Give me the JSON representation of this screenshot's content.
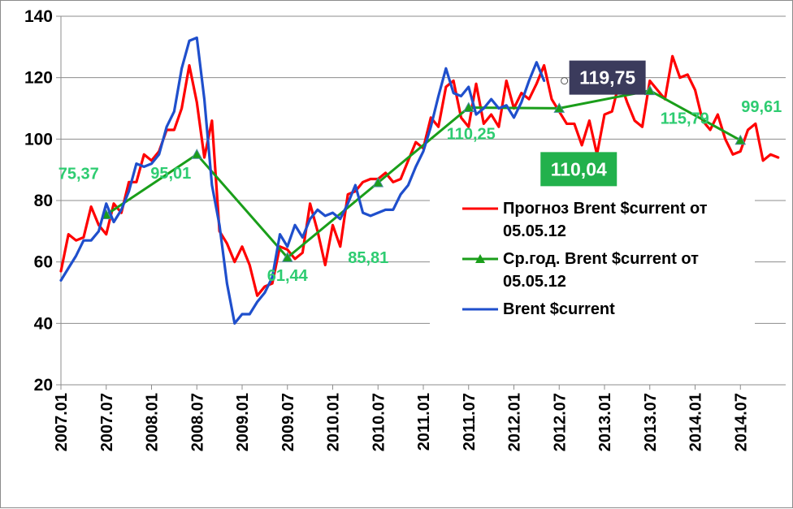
{
  "chart_data": {
    "type": "line",
    "title": "",
    "xlabel": "",
    "ylabel": "",
    "ylim": [
      20,
      140
    ],
    "yticks": [
      20,
      40,
      60,
      80,
      100,
      120,
      140
    ],
    "x_tick_labels": [
      "2007.01",
      "2007.07",
      "2008.01",
      "2008.07",
      "2009.01",
      "2009.07",
      "2010.01",
      "2010.07",
      "2011.01",
      "2011.07",
      "2012.01",
      "2012.07",
      "2013.01",
      "2013.07",
      "2014.01",
      "2014.07"
    ],
    "x_range": [
      2007.0,
      2015.0
    ],
    "grid": "horizontal",
    "legend_position": "center-right",
    "colors": {
      "forecast": "#ff0000",
      "average": "#1a9e1a",
      "actual": "#1f4fcc",
      "labels": "#2ecc71",
      "callout_dark": "#3b3b5c",
      "callout_green": "#22b14c"
    },
    "series": [
      {
        "key": "forecast",
        "name": "Прогноз Brent $current  от 05.05.12",
        "legend_lines": [
          "Прогноз Brent $current  от",
          "05.05.12"
        ],
        "x": [
          2007.0,
          2007.083,
          2007.167,
          2007.25,
          2007.333,
          2007.417,
          2007.5,
          2007.583,
          2007.667,
          2007.75,
          2007.833,
          2007.917,
          2008.0,
          2008.083,
          2008.167,
          2008.25,
          2008.333,
          2008.417,
          2008.5,
          2008.583,
          2008.667,
          2008.75,
          2008.833,
          2008.917,
          2009.0,
          2009.083,
          2009.167,
          2009.25,
          2009.333,
          2009.417,
          2009.5,
          2009.583,
          2009.667,
          2009.75,
          2009.833,
          2009.917,
          2010.0,
          2010.083,
          2010.167,
          2010.25,
          2010.333,
          2010.417,
          2010.5,
          2010.583,
          2010.667,
          2010.75,
          2010.833,
          2010.917,
          2011.0,
          2011.083,
          2011.167,
          2011.25,
          2011.333,
          2011.417,
          2011.5,
          2011.583,
          2011.667,
          2011.75,
          2011.833,
          2011.917,
          2012.0,
          2012.083,
          2012.167,
          2012.25,
          2012.333,
          2012.417,
          2012.5,
          2012.583,
          2012.667,
          2012.75,
          2012.833,
          2012.917,
          2013.0,
          2013.083,
          2013.167,
          2013.25,
          2013.333,
          2013.417,
          2013.5,
          2013.583,
          2013.667,
          2013.75,
          2013.833,
          2013.917,
          2014.0,
          2014.083,
          2014.167,
          2014.25,
          2014.333,
          2014.417,
          2014.5,
          2014.583,
          2014.667,
          2014.75,
          2014.833,
          2014.917
        ],
        "values": [
          57,
          69,
          67,
          68,
          78,
          72,
          69,
          79,
          76,
          86,
          86,
          95,
          93,
          96,
          103,
          103,
          110,
          124,
          112,
          94,
          106,
          70,
          66,
          60,
          65,
          59,
          49,
          52,
          53,
          65,
          64,
          61,
          63,
          79,
          70,
          59,
          72,
          65,
          82,
          83,
          86,
          87,
          87,
          89,
          86,
          87,
          93,
          99,
          97,
          107,
          104,
          117,
          119,
          107,
          104,
          118,
          105,
          108,
          104,
          119,
          110,
          115,
          113,
          118,
          124,
          113,
          109,
          105,
          105,
          98,
          106,
          95,
          108,
          109,
          119,
          112,
          106,
          104,
          119,
          116,
          113,
          127,
          120,
          121,
          116,
          106,
          103,
          108,
          100,
          95,
          96,
          103,
          105,
          93,
          95,
          94
        ]
      },
      {
        "key": "average",
        "name": "Ср.год. Brent $current   от 05.05.12",
        "legend_lines": [
          "Ср.год. Brent $current   от",
          "05.05.12"
        ],
        "x": [
          2007.5,
          2008.5,
          2009.5,
          2010.5,
          2011.5,
          2012.5,
          2013.5,
          2014.5
        ],
        "values": [
          75.37,
          95.01,
          61.44,
          85.81,
          110.25,
          110.04,
          115.79,
          99.61
        ],
        "labels": [
          "75,37",
          "95,01",
          "61,44",
          "85,81",
          "110,25",
          "110,04",
          "115,79",
          "99,61"
        ]
      },
      {
        "key": "actual",
        "name": "Brent $current",
        "legend_lines": [
          "Brent $current"
        ],
        "x": [
          2007.0,
          2007.083,
          2007.167,
          2007.25,
          2007.333,
          2007.417,
          2007.5,
          2007.583,
          2007.667,
          2007.75,
          2007.833,
          2007.917,
          2008.0,
          2008.083,
          2008.167,
          2008.25,
          2008.333,
          2008.417,
          2008.5,
          2008.583,
          2008.667,
          2008.75,
          2008.833,
          2008.917,
          2009.0,
          2009.083,
          2009.167,
          2009.25,
          2009.333,
          2009.417,
          2009.5,
          2009.583,
          2009.667,
          2009.75,
          2009.833,
          2009.917,
          2010.0,
          2010.083,
          2010.167,
          2010.25,
          2010.333,
          2010.417,
          2010.5,
          2010.583,
          2010.667,
          2010.75,
          2010.833,
          2010.917,
          2011.0,
          2011.083,
          2011.167,
          2011.25,
          2011.333,
          2011.417,
          2011.5,
          2011.583,
          2011.667,
          2011.75,
          2011.833,
          2011.917,
          2012.0,
          2012.083,
          2012.167,
          2012.25,
          2012.333
        ],
        "values": [
          54,
          58,
          62,
          67,
          67,
          70,
          79,
          73,
          77,
          83,
          92,
          91,
          92,
          95,
          104,
          109,
          123,
          132,
          133,
          113,
          85,
          72,
          53,
          40,
          43,
          43,
          47,
          50,
          55,
          69,
          65,
          72,
          68,
          74,
          77,
          75,
          76,
          74,
          79,
          85,
          76,
          75,
          76,
          77,
          77,
          82,
          85,
          91,
          96,
          104,
          114,
          123,
          115,
          114,
          117,
          108,
          110,
          113,
          110,
          111,
          107,
          112,
          119,
          125,
          119
        ]
      }
    ],
    "callouts": [
      {
        "text": "119,75",
        "style": "dark",
        "x": 2012.333,
        "y": 119.75
      },
      {
        "text": "110,04",
        "style": "green"
      }
    ]
  }
}
